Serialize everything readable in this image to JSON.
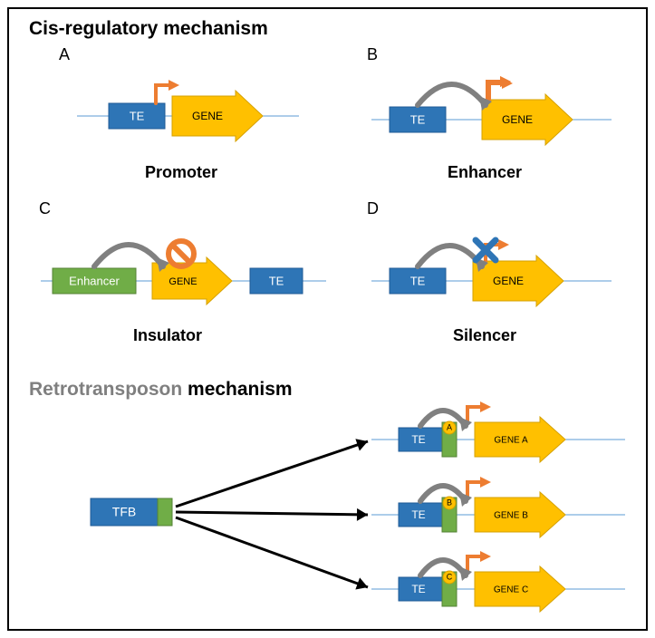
{
  "section_top_title_prefix": "Cis-regulatory",
  "section_top_title_suffix": " mechanism",
  "section_bottom_title_prefix": "Retrotransposon",
  "section_bottom_title_suffix": " mechanism",
  "panels": {
    "A": {
      "label": "A",
      "caption": "Promoter"
    },
    "B": {
      "label": "B",
      "caption": "Enhancer"
    },
    "C": {
      "label": "C",
      "caption": "Insulator"
    },
    "D": {
      "label": "D",
      "caption": "Silencer"
    }
  },
  "labels": {
    "TE": "TE",
    "GENE": "GENE",
    "ENHANCER": "Enhancer",
    "TFB": "TFB",
    "GENE_A": "GENE  A",
    "GENE_B": "GENE  B",
    "GENE_C": "GENE  C",
    "A": "A",
    "B": "B",
    "C": "C"
  },
  "colors": {
    "blue": "#2e75b6",
    "blue_dark": "#1f5a96",
    "yellow": "#ffc000",
    "yellow_dark": "#d6a100",
    "orange": "#ed7d31",
    "green": "#70ad47",
    "green_dark": "#548235",
    "gray": "#a6a6a6",
    "gray_arc": "#808080",
    "red_no": "#ed7d31",
    "axis": "#5b9bd5",
    "black": "#000000",
    "white": "#ffffff"
  },
  "geom": {
    "te_w": 62,
    "te_h": 28,
    "gene_body_w": 70,
    "gene_head_w": 30,
    "gene_h": 44,
    "small_gene_body_w": 58,
    "small_gene_head_w": 26,
    "small_gene_h": 38,
    "axis_y_offset": 0,
    "font_box": 13,
    "font_small": 11,
    "arrow_stroke": 3
  }
}
